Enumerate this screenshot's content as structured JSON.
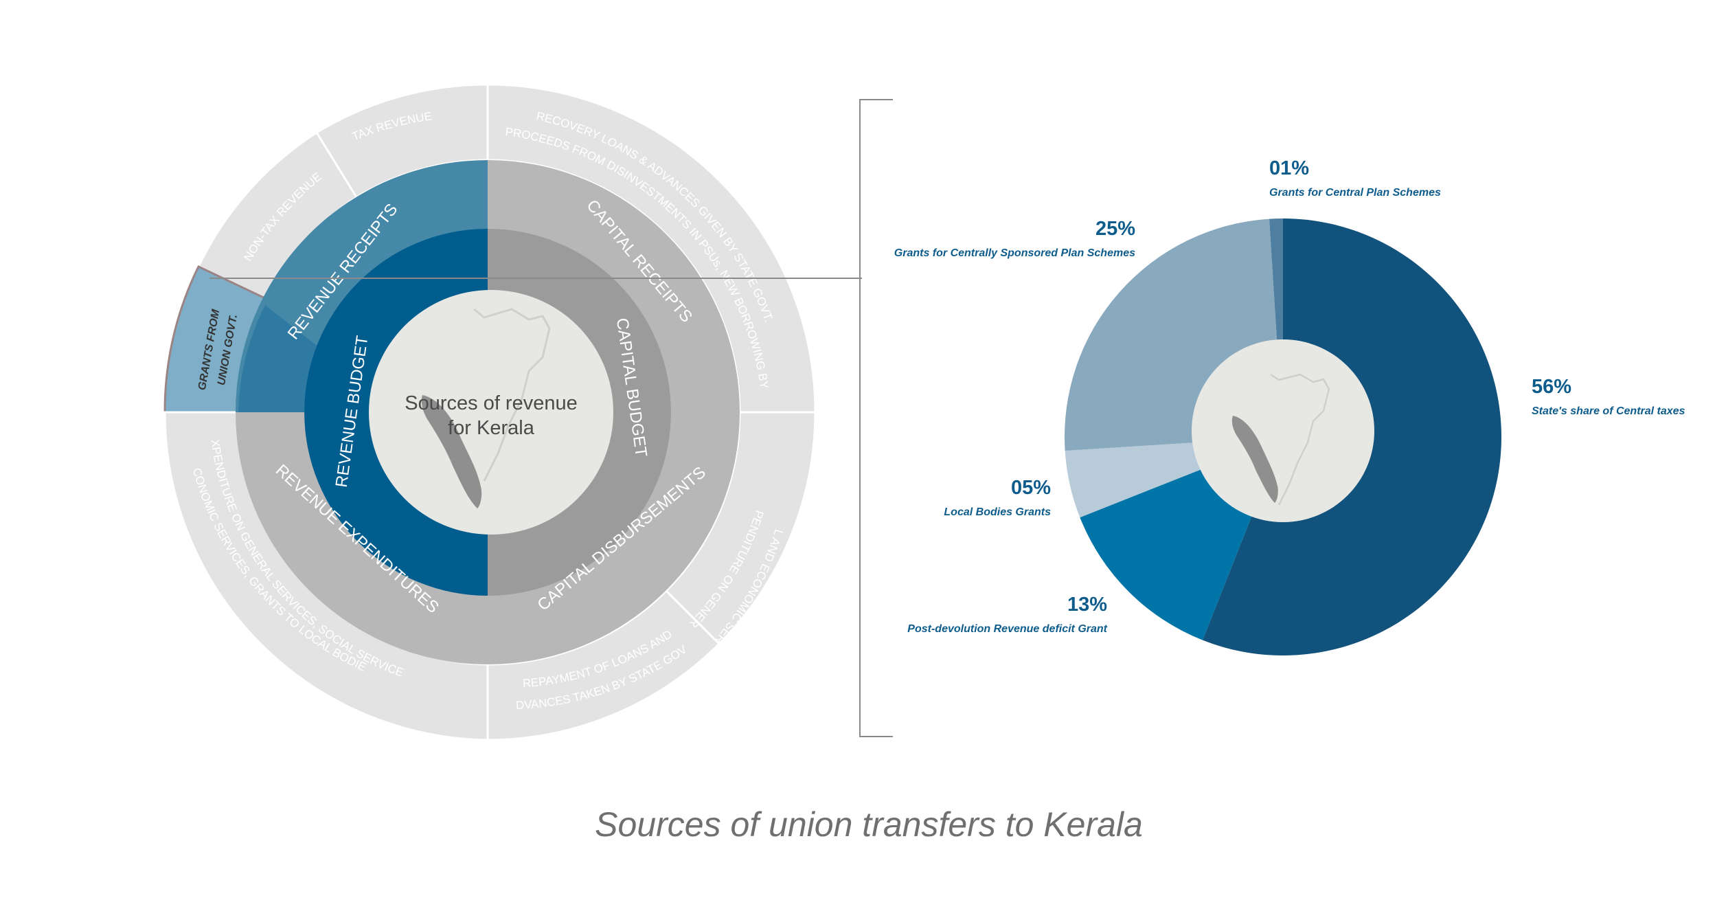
{
  "caption": "Sources of union transfers to Kerala",
  "sunburst": {
    "center_label": [
      "Sources of revenue",
      "for Kerala"
    ],
    "inner_ring": [
      {
        "label": "REVENUE  BUDGET",
        "color": "#005d8d"
      },
      {
        "label": "CAPITAL  BUDGET",
        "color": "#9b9b9b"
      }
    ],
    "middle_ring": [
      {
        "label": "REVENUE RECEIPTS",
        "color": "#4588a7"
      },
      {
        "label": "CAPITAL RECEIPTS",
        "color": "#b7b7b7"
      },
      {
        "label": "CAPITAL  DISBURSEMENTS",
        "color": "#b7b7b7"
      },
      {
        "label": "REVENUE  EXPENDITURES",
        "color": "#b7b7b7"
      }
    ],
    "outer_ring": [
      {
        "label": "TAX REVENUE",
        "color": "#e3e3e3"
      },
      {
        "label": "NON-TAX REVENUE",
        "color": "#e3e3e3"
      },
      {
        "label": [
          "GRANTS FROM",
          "UNION GOVT."
        ],
        "color": "#7fafc8"
      },
      {
        "label": [
          "RECOVERY LOANS & ADVANCES GIVEN BY STATE GOVT.",
          "PROCEEDS FROM DISINVESTMENTS IN PSUs, NEW BORROWING BY GOVT."
        ],
        "color": "#e3e3e3"
      },
      {
        "label": [
          "EXPENDITURE ON GENERAL",
          "SOCIAL AND ECONOMIC SERVICES"
        ],
        "color": "#e3e3e3"
      },
      {
        "label": [
          "REPAYMENT OF LOANS AND",
          "ADVANCES TAKEN BY STATE GOVT."
        ],
        "color": "#e3e3e3"
      },
      {
        "label": [
          "EXPENDITURE ON GENERAL SERVICES, SOCIAL SERVICES,",
          "ECONOMIC SERVICES, GRANTS TO LOCAL BODIES"
        ],
        "color": "#e3e3e3"
      }
    ],
    "highlight_color": "#2e7aa3"
  },
  "chart_data": {
    "type": "pie",
    "slices": [
      {
        "name": "State's share of Central taxes",
        "value": 56,
        "value_label": "56%",
        "color": "#12537d"
      },
      {
        "name": "Post-devolution Revenue deficit Grant",
        "value": 13,
        "value_label": "13%",
        "color": "#0174a8"
      },
      {
        "name": "Local Bodies Grants",
        "value": 5,
        "value_label": "05%",
        "color": "#b7cbd8"
      },
      {
        "name": "Grants for Centrally Sponsored Plan Schemes",
        "value": 25,
        "value_label": "25%",
        "color": "#89a9be"
      },
      {
        "name": "Grants for Central Plan Schemes",
        "value": 1,
        "value_label": "01%",
        "color": "#4f7fa0"
      }
    ]
  },
  "colors": {
    "label_blue": "#0d5c8c",
    "center_fill": "#e7e7e4",
    "map_fill": "#8f8f8f",
    "divider": "#8a8a8a"
  }
}
